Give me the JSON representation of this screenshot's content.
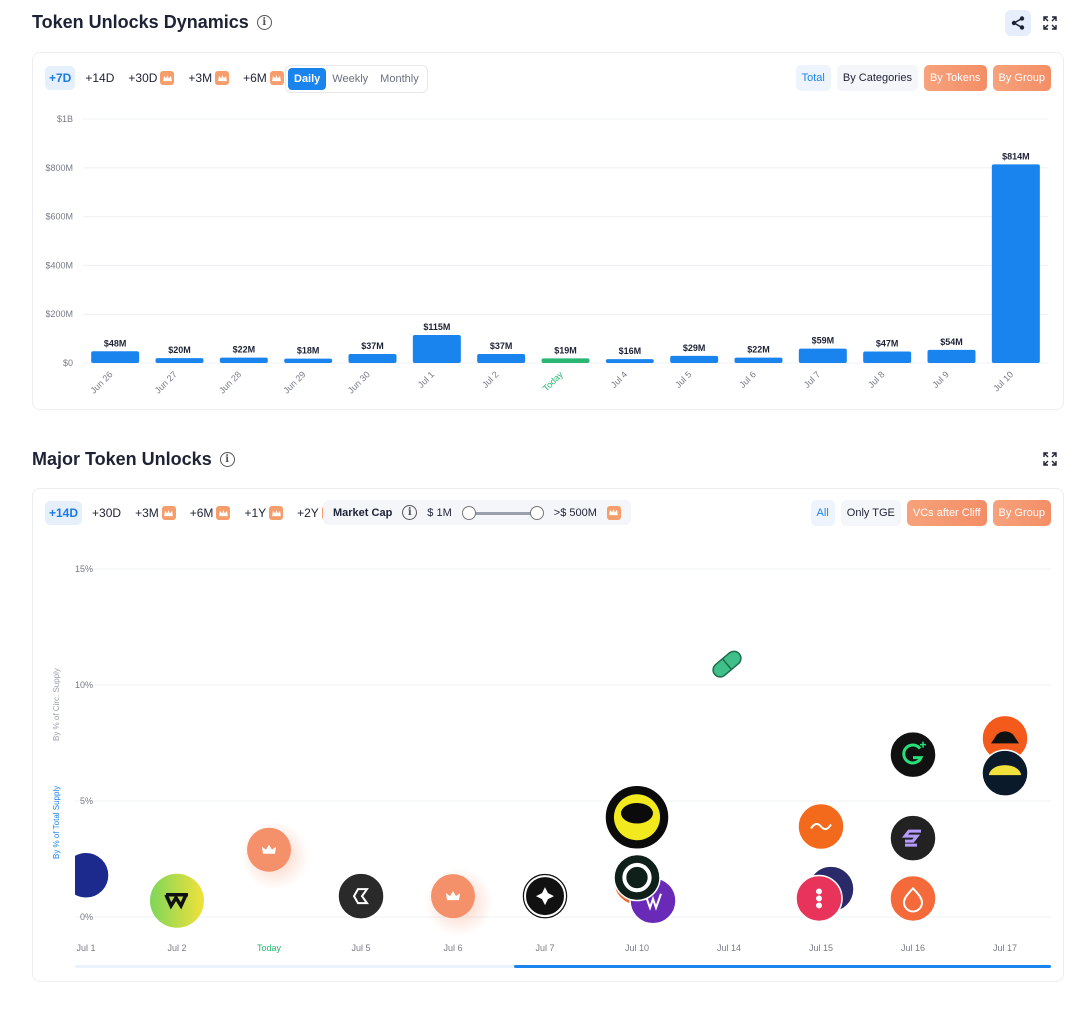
{
  "section1": {
    "title": "Token Unlocks Dynamics",
    "ranges": [
      {
        "label": "+7D",
        "active": true,
        "premium": false
      },
      {
        "label": "+14D",
        "active": false,
        "premium": false
      },
      {
        "label": "+30D",
        "active": false,
        "premium": true
      },
      {
        "label": "+3M",
        "active": false,
        "premium": true
      },
      {
        "label": "+6M",
        "active": false,
        "premium": true
      }
    ],
    "intervals": [
      "Daily",
      "Weekly",
      "Monthly"
    ],
    "view_buttons": [
      "Total",
      "By Categories",
      "By Tokens",
      "By Group"
    ]
  },
  "section2": {
    "title": "Major Token Unlocks",
    "ranges": [
      {
        "label": "+14D",
        "active": true,
        "premium": false
      },
      {
        "label": "+30D",
        "active": false,
        "premium": false
      },
      {
        "label": "+3M",
        "active": false,
        "premium": true
      },
      {
        "label": "+6M",
        "active": false,
        "premium": true
      },
      {
        "label": "+1Y",
        "active": false,
        "premium": true
      },
      {
        "label": "+2Y",
        "active": false,
        "premium": true
      }
    ],
    "market_cap": {
      "label": "Market Cap",
      "min_label": "$ 1M",
      "max_label": ">$ 500M"
    },
    "view_buttons": [
      "All",
      "Only TGE",
      "VCs after Cliff",
      "By Group"
    ]
  },
  "colors": {
    "bar": "#1a84ee",
    "today_bar": "#2ab673",
    "today_label": "#2ab673",
    "premium": "#f59e6c"
  },
  "icons": {
    "share": "share-icon",
    "expand": "expand-icon",
    "info": "info-icon",
    "crown": "crown-icon"
  },
  "chart_data": [
    {
      "type": "bar",
      "categories": [
        "Jun 26",
        "Jun 27",
        "Jun 28",
        "Jun 29",
        "Jun 30",
        "Jul 1",
        "Jul 2",
        "Today",
        "Jul 4",
        "Jul 5",
        "Jul 6",
        "Jul 7",
        "Jul 8",
        "Jul 9",
        "Jul 10"
      ],
      "values": [
        48,
        20,
        22,
        18,
        37,
        115,
        37,
        19,
        16,
        29,
        22,
        59,
        47,
        54,
        814
      ],
      "value_labels": [
        "$48M",
        "$20M",
        "$22M",
        "$18M",
        "$37M",
        "$115M",
        "$37M",
        "$19M",
        "$16M",
        "$29M",
        "$22M",
        "$59M",
        "$47M",
        "$54M",
        "$814M"
      ],
      "highlight_category": "Today",
      "yticks": [
        "$0",
        "$200M",
        "$400M",
        "$600M",
        "$800M",
        "$1B"
      ],
      "ytick_values": [
        0,
        200,
        400,
        600,
        800,
        1000
      ],
      "ylim": [
        0,
        1000
      ],
      "grid": true
    },
    {
      "type": "scatter",
      "categories": [
        "Jul 1",
        "Jul 2",
        "Today",
        "Jul 5",
        "Jul 6",
        "Jul 7",
        "Jul 10",
        "Jul 14",
        "Jul 15",
        "Jul 16",
        "Jul 17"
      ],
      "yticks": [
        "0%",
        "5%",
        "10%",
        "15%"
      ],
      "ytick_values": [
        0,
        5,
        10,
        15
      ],
      "ylim": [
        0,
        15
      ],
      "ylabel_primary": "By % of Total Supply",
      "ylabel_secondary": "By % of Circ. Supply",
      "grid": true,
      "points": [
        {
          "x": "Jul 1",
          "y": 1.8,
          "icon": "navy-token-icon",
          "color": "#1b2a8c"
        },
        {
          "x": "Jul 2",
          "y": 0.7,
          "icon": "wormhole-w-icon",
          "color": "#b7e04a"
        },
        {
          "x": "Today",
          "y": 2.9,
          "icon": "crown-icon",
          "color": "#f4916a"
        },
        {
          "x": "Jul 5",
          "y": 0.9,
          "icon": "hexagon-token-icon",
          "color": "#2a2a2a"
        },
        {
          "x": "Jul 6",
          "y": 0.9,
          "icon": "crown-icon",
          "color": "#f4916a"
        },
        {
          "x": "Jul 7",
          "y": 0.9,
          "icon": "star-token-icon",
          "color": "#111111"
        },
        {
          "x": "Jul 10",
          "y": 1.5,
          "icon": "orange-token-icon",
          "color": "#e86a3a"
        },
        {
          "x": "Jul 10",
          "y": 0.7,
          "icon": "purple-token-icon",
          "color": "#6a2ab8"
        },
        {
          "x": "Jul 10",
          "y": 1.7,
          "icon": "ring-token-icon",
          "color": "#0f1f1a"
        },
        {
          "x": "Jul 10",
          "y": 4.3,
          "icon": "yellow-ring-token-icon",
          "color": "#0b0b0b"
        },
        {
          "x": "Jul 14",
          "y": 10.9,
          "icon": "pill-token-icon",
          "color": "#3fbf8a"
        },
        {
          "x": "Jul 15",
          "y": 3.9,
          "icon": "sign-token-icon",
          "color": "#f46a1c"
        },
        {
          "x": "Jul 15",
          "y": 1.2,
          "icon": "star-purple-token-icon",
          "color": "#2a2a6a"
        },
        {
          "x": "Jul 15",
          "y": 0.8,
          "icon": "dots-token-icon",
          "color": "#e8345a"
        },
        {
          "x": "Jul 16",
          "y": 7.0,
          "icon": "g-plus-token-icon",
          "color": "#111111"
        },
        {
          "x": "Jul 16",
          "y": 3.4,
          "icon": "s-token-icon",
          "color": "#222222"
        },
        {
          "x": "Jul 16",
          "y": 0.8,
          "icon": "flame-token-icon",
          "color": "#f46a3a"
        },
        {
          "x": "Jul 17",
          "y": 7.7,
          "icon": "hat-token-icon",
          "color": "#f45a1c"
        },
        {
          "x": "Jul 17",
          "y": 6.2,
          "icon": "sun-token-icon",
          "color": "#0a1a2a"
        }
      ]
    }
  ]
}
